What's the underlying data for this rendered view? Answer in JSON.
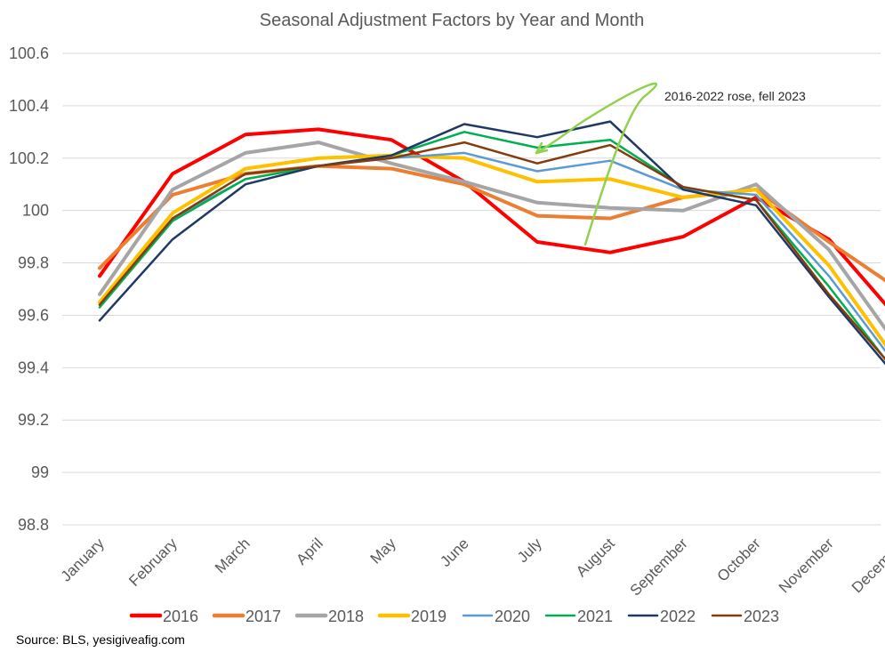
{
  "chart_data": {
    "type": "line",
    "title": "Seasonal Adjustment Factors by Year and Month",
    "xlabel": "",
    "ylabel": "",
    "ylim": [
      98.8,
      100.6
    ],
    "y_ticks": [
      "98.8",
      "99",
      "99.2",
      "99.4",
      "99.6",
      "99.8",
      "100",
      "100.2",
      "100.4",
      "100.6"
    ],
    "grid": true,
    "legend_position": "bottom",
    "categories": [
      "January",
      "February",
      "March",
      "April",
      "May",
      "June",
      "July",
      "August",
      "September",
      "October",
      "November",
      "December"
    ],
    "series": [
      {
        "name": "2016",
        "color": "#ff0000",
        "weight": "thick",
        "values": [
          99.75,
          100.14,
          100.29,
          100.31,
          100.27,
          100.11,
          99.88,
          99.84,
          99.9,
          100.05,
          99.89,
          99.57
        ]
      },
      {
        "name": "2017",
        "color": "#ed7d31",
        "weight": "thick",
        "values": [
          99.78,
          100.06,
          100.14,
          100.17,
          100.16,
          100.1,
          99.98,
          99.97,
          100.05,
          100.08,
          99.88,
          99.69
        ]
      },
      {
        "name": "2018",
        "color": "#a5a5a5",
        "weight": "thick",
        "values": [
          99.68,
          100.08,
          100.22,
          100.26,
          100.18,
          100.11,
          100.03,
          100.01,
          100.0,
          100.1,
          99.85,
          99.46
        ]
      },
      {
        "name": "2019",
        "color": "#ffc000",
        "weight": "thick",
        "values": [
          99.65,
          99.99,
          100.16,
          100.2,
          100.21,
          100.2,
          100.11,
          100.12,
          100.05,
          100.08,
          99.79,
          99.4
        ]
      },
      {
        "name": "2020",
        "color": "#5b9bd5",
        "weight": "thin",
        "values": [
          99.64,
          99.97,
          100.12,
          100.17,
          100.2,
          100.22,
          100.15,
          100.19,
          100.08,
          100.06,
          99.75,
          99.38
        ]
      },
      {
        "name": "2021",
        "color": "#00b050",
        "weight": "thin",
        "values": [
          99.63,
          99.96,
          100.12,
          100.17,
          100.21,
          100.3,
          100.24,
          100.27,
          100.09,
          100.04,
          99.71,
          99.35
        ]
      },
      {
        "name": "2022",
        "color": "#203864",
        "weight": "thin",
        "values": [
          99.58,
          99.89,
          100.1,
          100.17,
          100.21,
          100.33,
          100.28,
          100.34,
          100.08,
          100.02,
          99.67,
          99.34
        ]
      },
      {
        "name": "2023",
        "color": "#843c0c",
        "weight": "thin",
        "values": [
          99.64,
          99.97,
          100.14,
          100.17,
          100.2,
          100.26,
          100.18,
          100.25,
          100.09,
          100.04,
          99.68,
          99.36
        ]
      }
    ],
    "annotation": {
      "text": "2016-2022 rose, fell 2023",
      "color": "#92d050"
    }
  },
  "source": "Source: BLS, yesigiveafig.com"
}
